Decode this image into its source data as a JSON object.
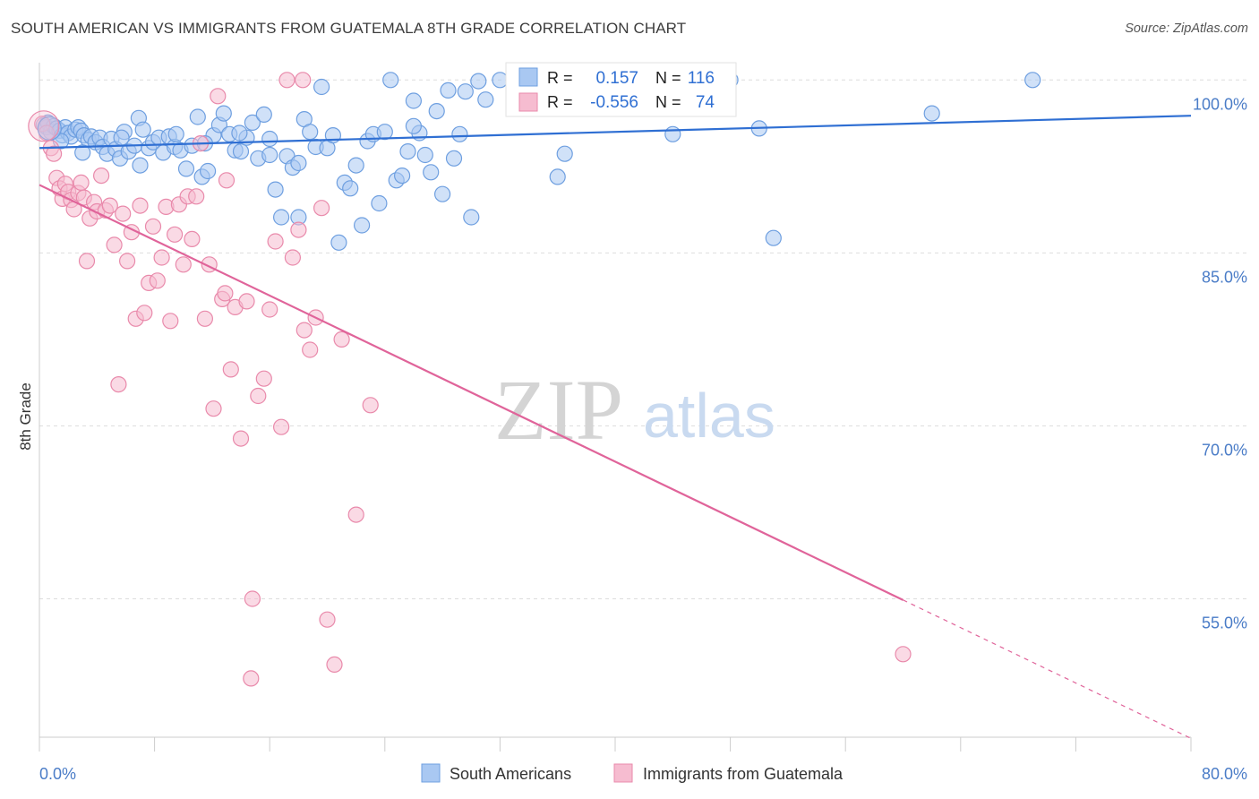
{
  "title": "SOUTH AMERICAN VS IMMIGRANTS FROM GUATEMALA 8TH GRADE CORRELATION CHART",
  "source": "Source: ZipAtlas.com",
  "watermark": {
    "zip": "ZIP",
    "atlas": "atlas"
  },
  "colors": {
    "blue_fill": "#a9c8f2",
    "blue_stroke": "#6e9fe0",
    "blue_line": "#2f6fd3",
    "pink_fill": "#f6bcd0",
    "pink_stroke": "#e98aab",
    "pink_line": "#e0649a",
    "tick_text": "#4a7cc7",
    "grid": "#dddddd"
  },
  "stats_box": {
    "rows": [
      {
        "r_label": "R =",
        "r_value": "0.157",
        "n_label": "N =",
        "n_value": "116"
      },
      {
        "r_label": "R =",
        "r_value": "-0.556",
        "n_label": "N =",
        "n_value": "74"
      }
    ]
  },
  "chart_data": {
    "type": "scatter",
    "title": "SOUTH AMERICAN VS IMMIGRANTS FROM GUATEMALA 8TH GRADE CORRELATION CHART",
    "xlabel": "",
    "ylabel": "8th Grade",
    "xlim": [
      0,
      80
    ],
    "ylim": [
      43,
      101.5
    ],
    "x_tick_labels": [
      "0.0%",
      "80.0%"
    ],
    "y_ticks": [
      100,
      85,
      70,
      55
    ],
    "y_tick_labels": [
      "100.0%",
      "85.0%",
      "70.0%",
      "55.0%"
    ],
    "grid": "horizontal dashed",
    "legend_position": "bottom",
    "series": [
      {
        "name": "South Americans",
        "color": "#a9c8f2",
        "trend": {
          "x0": 0,
          "y0": 94.1,
          "x1": 80,
          "y1": 96.9
        },
        "points": [
          [
            0.3,
            96.1
          ],
          [
            0.5,
            95.9
          ],
          [
            0.6,
            96.3
          ],
          [
            0.8,
            95.5
          ],
          [
            1.0,
            96.0
          ],
          [
            1.2,
            95.8
          ],
          [
            1.4,
            95.6
          ],
          [
            1.6,
            95.2
          ],
          [
            1.8,
            95.9
          ],
          [
            2.0,
            95.4
          ],
          [
            2.2,
            95.1
          ],
          [
            2.5,
            95.7
          ],
          [
            2.7,
            95.9
          ],
          [
            2.9,
            95.6
          ],
          [
            3.1,
            95.2
          ],
          [
            3.4,
            94.8
          ],
          [
            3.6,
            95.1
          ],
          [
            3.9,
            94.6
          ],
          [
            4.2,
            95.0
          ],
          [
            4.4,
            94.2
          ],
          [
            4.7,
            93.6
          ],
          [
            5.0,
            94.9
          ],
          [
            5.3,
            94.0
          ],
          [
            5.6,
            93.2
          ],
          [
            5.9,
            95.5
          ],
          [
            6.2,
            93.8
          ],
          [
            6.6,
            94.3
          ],
          [
            6.9,
            96.7
          ],
          [
            7.2,
            95.7
          ],
          [
            7.6,
            94.1
          ],
          [
            7.9,
            94.6
          ],
          [
            8.3,
            95.0
          ],
          [
            8.6,
            93.7
          ],
          [
            9.0,
            95.1
          ],
          [
            9.4,
            94.2
          ],
          [
            9.8,
            93.9
          ],
          [
            10.2,
            92.3
          ],
          [
            10.6,
            94.3
          ],
          [
            11.0,
            96.8
          ],
          [
            11.3,
            91.6
          ],
          [
            11.7,
            92.1
          ],
          [
            12.1,
            95.2
          ],
          [
            12.5,
            96.1
          ],
          [
            12.8,
            97.1
          ],
          [
            13.2,
            95.3
          ],
          [
            13.6,
            93.9
          ],
          [
            14.0,
            93.8
          ],
          [
            14.4,
            95.0
          ],
          [
            14.8,
            96.3
          ],
          [
            15.2,
            93.2
          ],
          [
            15.6,
            97.0
          ],
          [
            16.0,
            94.9
          ],
          [
            16.4,
            90.5
          ],
          [
            16.8,
            88.1
          ],
          [
            17.2,
            93.4
          ],
          [
            17.6,
            92.4
          ],
          [
            18.0,
            88.1
          ],
          [
            18.4,
            96.6
          ],
          [
            18.8,
            95.5
          ],
          [
            19.2,
            94.2
          ],
          [
            19.6,
            99.4
          ],
          [
            20.0,
            94.1
          ],
          [
            20.4,
            95.2
          ],
          [
            20.8,
            85.9
          ],
          [
            21.2,
            91.1
          ],
          [
            21.6,
            90.6
          ],
          [
            22.0,
            92.6
          ],
          [
            22.4,
            87.4
          ],
          [
            22.8,
            94.7
          ],
          [
            23.2,
            95.3
          ],
          [
            23.6,
            89.3
          ],
          [
            24.0,
            95.5
          ],
          [
            24.4,
            100.0
          ],
          [
            24.8,
            91.3
          ],
          [
            25.2,
            91.7
          ],
          [
            25.6,
            93.8
          ],
          [
            26.0,
            98.2
          ],
          [
            26.4,
            95.4
          ],
          [
            26.8,
            93.5
          ],
          [
            27.2,
            92.0
          ],
          [
            27.6,
            97.3
          ],
          [
            28.0,
            90.1
          ],
          [
            28.4,
            99.1
          ],
          [
            28.8,
            93.2
          ],
          [
            29.2,
            95.3
          ],
          [
            29.6,
            99.0
          ],
          [
            30.0,
            88.1
          ],
          [
            30.5,
            99.9
          ],
          [
            31.0,
            98.3
          ],
          [
            32.0,
            100.0
          ],
          [
            33.0,
            99.7
          ],
          [
            34.0,
            100.0
          ],
          [
            35.0,
            99.8
          ],
          [
            36.0,
            91.6
          ],
          [
            36.5,
            93.6
          ],
          [
            38.0,
            99.2
          ],
          [
            39.0,
            100.0
          ],
          [
            40.0,
            99.6
          ],
          [
            42.0,
            99.9
          ],
          [
            44.0,
            95.3
          ],
          [
            46.0,
            99.4
          ],
          [
            48.0,
            100.0
          ],
          [
            50.0,
            95.8
          ],
          [
            51.0,
            86.3
          ],
          [
            62.0,
            97.1
          ],
          [
            69.0,
            100.0
          ],
          [
            1.5,
            94.7
          ],
          [
            5.7,
            95.0
          ],
          [
            9.5,
            95.3
          ],
          [
            13.9,
            95.4
          ],
          [
            18.0,
            92.8
          ],
          [
            26.0,
            96.0
          ],
          [
            3.0,
            93.7
          ],
          [
            7.0,
            92.6
          ],
          [
            11.5,
            94.5
          ],
          [
            16.0,
            93.5
          ]
        ]
      },
      {
        "name": "Immigrants from Guatemala",
        "color": "#f6bcd0",
        "trend": {
          "x0": 0,
          "y0": 90.9,
          "x1": 60,
          "y1": 54.9,
          "dash_to": {
            "x": 80,
            "y": 42.9
          }
        },
        "points": [
          [
            0.2,
            96.2
          ],
          [
            0.5,
            95.4
          ],
          [
            0.8,
            94.1
          ],
          [
            1.0,
            93.6
          ],
          [
            1.2,
            91.5
          ],
          [
            1.4,
            90.6
          ],
          [
            1.6,
            89.7
          ],
          [
            1.8,
            91.0
          ],
          [
            2.0,
            90.3
          ],
          [
            2.2,
            89.6
          ],
          [
            2.4,
            88.8
          ],
          [
            2.7,
            90.2
          ],
          [
            2.9,
            91.1
          ],
          [
            3.1,
            89.8
          ],
          [
            3.3,
            84.3
          ],
          [
            3.5,
            88.0
          ],
          [
            3.8,
            89.4
          ],
          [
            4.0,
            88.6
          ],
          [
            4.3,
            91.7
          ],
          [
            4.6,
            88.7
          ],
          [
            4.9,
            89.1
          ],
          [
            5.2,
            85.7
          ],
          [
            5.5,
            73.6
          ],
          [
            5.8,
            88.4
          ],
          [
            6.1,
            84.3
          ],
          [
            6.4,
            86.8
          ],
          [
            6.7,
            79.3
          ],
          [
            7.0,
            89.1
          ],
          [
            7.3,
            79.8
          ],
          [
            7.6,
            82.4
          ],
          [
            7.9,
            87.3
          ],
          [
            8.2,
            82.6
          ],
          [
            8.5,
            84.6
          ],
          [
            8.8,
            89.0
          ],
          [
            9.1,
            79.1
          ],
          [
            9.4,
            86.6
          ],
          [
            9.7,
            89.2
          ],
          [
            10.0,
            84.0
          ],
          [
            10.3,
            89.9
          ],
          [
            10.6,
            86.2
          ],
          [
            10.9,
            89.9
          ],
          [
            11.2,
            94.5
          ],
          [
            11.5,
            79.3
          ],
          [
            11.8,
            84.0
          ],
          [
            12.1,
            71.5
          ],
          [
            12.4,
            98.6
          ],
          [
            12.7,
            81.0
          ],
          [
            13.0,
            91.3
          ],
          [
            13.3,
            74.9
          ],
          [
            13.6,
            80.3
          ],
          [
            14.0,
            68.9
          ],
          [
            14.4,
            80.8
          ],
          [
            14.8,
            55.0
          ],
          [
            15.2,
            72.6
          ],
          [
            15.6,
            74.1
          ],
          [
            16.0,
            80.1
          ],
          [
            16.4,
            86.0
          ],
          [
            16.8,
            69.9
          ],
          [
            17.2,
            100.0
          ],
          [
            17.6,
            84.6
          ],
          [
            18.0,
            87.0
          ],
          [
            18.4,
            78.3
          ],
          [
            18.8,
            76.6
          ],
          [
            19.2,
            79.4
          ],
          [
            19.6,
            88.9
          ],
          [
            20.0,
            53.2
          ],
          [
            20.5,
            49.3
          ],
          [
            21.0,
            77.5
          ],
          [
            22.0,
            62.3
          ],
          [
            23.0,
            71.8
          ],
          [
            60.0,
            50.2
          ],
          [
            14.7,
            48.1
          ],
          [
            18.3,
            100.0
          ],
          [
            12.9,
            81.5
          ]
        ]
      }
    ]
  }
}
